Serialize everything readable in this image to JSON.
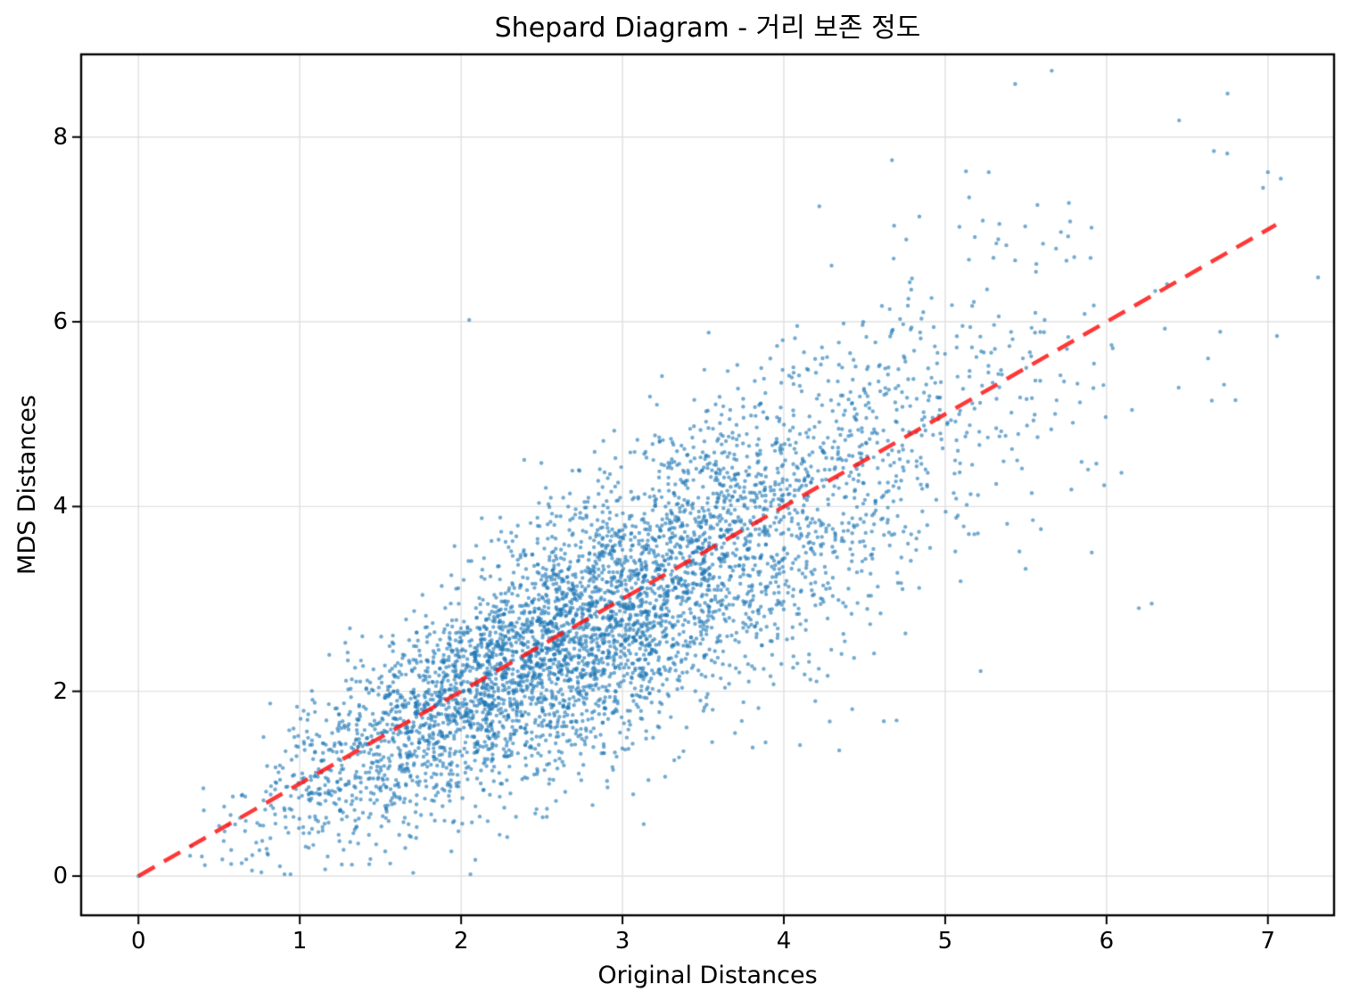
{
  "chart_data": {
    "type": "scatter",
    "title": "Shepard Diagram - 거리 보존 정도",
    "xlabel": "Original Distances",
    "ylabel": "MDS Distances",
    "x_ticks": [
      0,
      1,
      2,
      3,
      4,
      5,
      6,
      7
    ],
    "y_ticks": [
      0,
      2,
      4,
      6,
      8
    ],
    "xlim": [
      -0.355,
      7.41
    ],
    "ylim": [
      -0.425,
      8.895
    ],
    "grid": true,
    "grid_color": "#e0e0e0",
    "frame_color": "#000000",
    "tick_color": "#000000",
    "scatter": {
      "n_points": 4950,
      "color": "#1f77b4",
      "alpha": 0.62,
      "radius": 2.2,
      "generator": {
        "seed": 42,
        "source_points": 100,
        "dims": 4,
        "sigma": 1.08,
        "y_scale": 0.97,
        "noise_base": 0.32,
        "noise_slope": 0.13,
        "max_x": 7.35,
        "min_y": 0.02
      },
      "fixed_points": [
        [
          0,
          0
        ],
        [
          6.75,
          8.47
        ],
        [
          6.45,
          8.18
        ],
        [
          4.67,
          7.75
        ],
        [
          5.27,
          7.62
        ],
        [
          7.0,
          7.62
        ],
        [
          6.97,
          7.45
        ],
        [
          7.08,
          7.55
        ],
        [
          4.22,
          7.25
        ],
        [
          2.05,
          6.02
        ],
        [
          6.2,
          2.9
        ],
        [
          6.28,
          2.95
        ],
        [
          0.32,
          0.22
        ],
        [
          0.52,
          0.18
        ],
        [
          0.75,
          0.28
        ]
      ]
    },
    "identity_line": {
      "style": "dashed",
      "from": [
        0,
        0
      ],
      "to": [
        7.05,
        7.05
      ],
      "color": "#ff1414",
      "alpha": 0.85,
      "width": 4.5,
      "dash": [
        21,
        12
      ]
    }
  }
}
